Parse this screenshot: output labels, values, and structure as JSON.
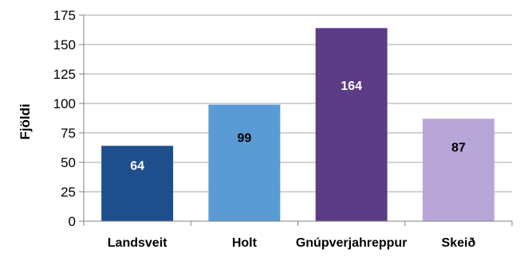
{
  "chart_data": {
    "type": "bar",
    "title": "",
    "xlabel": "",
    "ylabel": "Fjöldi",
    "categories": [
      "Landsveit",
      "Holt",
      "Gnúpverjahreppur",
      "Skeið"
    ],
    "values": [
      64,
      99,
      164,
      87
    ],
    "data_labels": [
      "64",
      "99",
      "164",
      "87"
    ],
    "colors": [
      "#1f4e8c",
      "#5b9bd5",
      "#5c3c85",
      "#b8a6d9"
    ],
    "label_colors": [
      "#ffffff",
      "#000000",
      "#ffffff",
      "#000000"
    ],
    "ylim": [
      0,
      175
    ],
    "yticks": [
      0,
      25,
      50,
      75,
      100,
      125,
      150,
      175
    ],
    "grid": true,
    "grid_color": "#a6a6a6",
    "legend": "none"
  }
}
